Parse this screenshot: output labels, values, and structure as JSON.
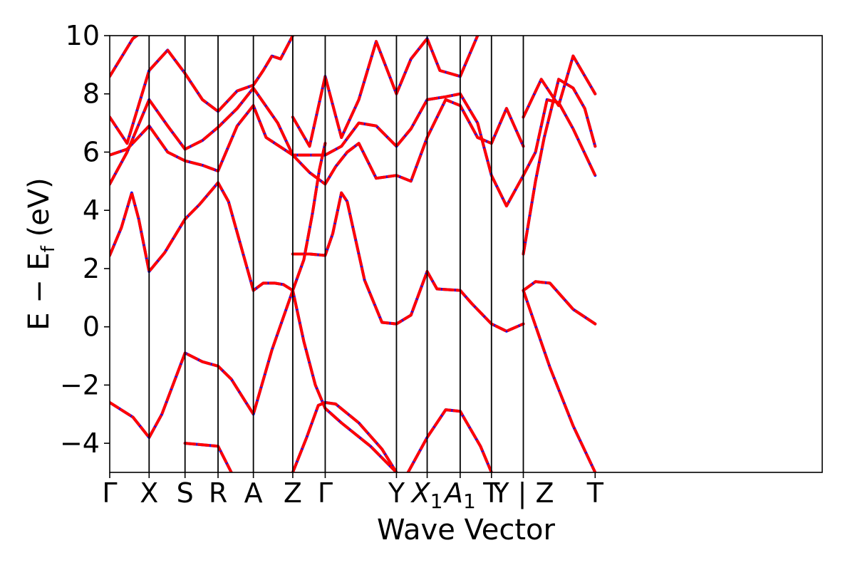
{
  "chart_data": {
    "type": "line",
    "title": "",
    "xlabel": "Wave Vector",
    "ylabel": "E − E_f (eV)",
    "ylabel_main": "E − E",
    "ylabel_sub": "f",
    "ylabel_unit": " (eV)",
    "ylim": [
      -5,
      10
    ],
    "yticks": [
      -4,
      -2,
      0,
      2,
      4,
      6,
      8,
      10
    ],
    "ytick_labels": [
      "−4",
      "−2",
      "0",
      "2",
      "4",
      "6",
      "8",
      "10"
    ],
    "xlim": [
      0,
      12.3
    ],
    "high_symmetry_points": [
      {
        "label": "Γ",
        "x": 0.0
      },
      {
        "label": "X",
        "x": 0.68
      },
      {
        "label": "S",
        "x": 1.3
      },
      {
        "label": "R",
        "x": 1.87
      },
      {
        "label": "A",
        "x": 2.48
      },
      {
        "label": "Z",
        "x": 3.16
      },
      {
        "label": "Γ",
        "x": 3.72
      },
      {
        "label": "Y",
        "x": 4.95
      },
      {
        "label": "X1",
        "x": 5.48
      },
      {
        "label": "A1",
        "x": 6.05
      },
      {
        "label": "T",
        "x": 6.59
      },
      {
        "label": "Y | Z",
        "x": 7.14
      },
      {
        "label": "T",
        "x": 8.38
      }
    ],
    "grid": false,
    "series": [
      {
        "name": "",
        "color": "#0000ff",
        "style": "solid",
        "bands": [
          [
            [
              0,
              2.45
            ],
            [
              0.2,
              3.4
            ],
            [
              0.38,
              4.6
            ],
            [
              0.5,
              3.7
            ],
            [
              0.68,
              1.9
            ],
            [
              0.95,
              2.55
            ],
            [
              1.3,
              3.7
            ],
            [
              1.55,
              4.2
            ],
            [
              1.87,
              4.95
            ],
            [
              2.05,
              4.3
            ],
            [
              2.48,
              1.25
            ],
            [
              2.65,
              1.5
            ],
            [
              2.85,
              1.5
            ],
            [
              3.0,
              1.45
            ],
            [
              3.16,
              1.25
            ]
          ],
          [
            [
              3.16,
              1.25
            ],
            [
              3.35,
              2.3
            ],
            [
              3.5,
              3.9
            ],
            [
              3.62,
              5.4
            ],
            [
              3.72,
              6.3
            ]
          ],
          [
            [
              3.16,
              2.5
            ],
            [
              3.45,
              2.5
            ],
            [
              3.72,
              2.45
            ],
            [
              3.85,
              3.2
            ],
            [
              4.0,
              4.6
            ],
            [
              4.1,
              4.3
            ],
            [
              4.4,
              1.6
            ],
            [
              4.7,
              0.15
            ],
            [
              4.95,
              0.1
            ],
            [
              5.2,
              0.4
            ],
            [
              5.48,
              1.9
            ],
            [
              5.65,
              1.3
            ],
            [
              6.05,
              1.25
            ],
            [
              6.25,
              0.8
            ],
            [
              6.59,
              0.1
            ],
            [
              6.85,
              -0.15
            ],
            [
              7.14,
              0.1
            ]
          ],
          [
            [
              7.14,
              1.25
            ],
            [
              7.35,
              1.55
            ],
            [
              7.6,
              1.5
            ],
            [
              8.0,
              0.6
            ],
            [
              8.38,
              0.1
            ]
          ],
          [
            [
              0,
              -2.6
            ],
            [
              0.4,
              -3.1
            ],
            [
              0.68,
              -3.8
            ],
            [
              0.9,
              -3.0
            ],
            [
              1.3,
              -0.9
            ],
            [
              1.6,
              -1.2
            ],
            [
              1.87,
              -1.35
            ],
            [
              2.1,
              -1.8
            ],
            [
              2.48,
              -3.0
            ],
            [
              2.8,
              -0.8
            ],
            [
              3.16,
              1.25
            ],
            [
              3.35,
              -0.5
            ],
            [
              3.55,
              -2.0
            ],
            [
              3.72,
              -2.8
            ],
            [
              4.0,
              -3.3
            ],
            [
              4.5,
              -4.1
            ],
            [
              4.95,
              -5.0
            ]
          ],
          [
            [
              3.16,
              -5.0
            ],
            [
              3.4,
              -3.8
            ],
            [
              3.6,
              -2.7
            ],
            [
              3.72,
              -2.6
            ],
            [
              3.9,
              -2.65
            ],
            [
              4.3,
              -3.3
            ],
            [
              4.7,
              -4.2
            ],
            [
              4.95,
              -5.0
            ]
          ],
          [
            [
              5.15,
              -5.0
            ],
            [
              5.48,
              -3.8
            ],
            [
              5.8,
              -2.85
            ],
            [
              6.05,
              -2.9
            ],
            [
              6.4,
              -4.1
            ],
            [
              6.59,
              -5.0
            ]
          ],
          [
            [
              7.14,
              1.25
            ],
            [
              7.6,
              -1.4
            ],
            [
              8.0,
              -3.4
            ],
            [
              8.38,
              -5.0
            ]
          ],
          [
            [
              1.3,
              -4.0
            ],
            [
              1.87,
              -4.1
            ],
            [
              2.1,
              -5.0
            ]
          ],
          [
            [
              0,
              4.9
            ],
            [
              0.3,
              6.0
            ],
            [
              0.68,
              7.8
            ],
            [
              1.0,
              6.9
            ],
            [
              1.3,
              6.1
            ],
            [
              1.6,
              6.4
            ],
            [
              1.87,
              6.85
            ],
            [
              2.2,
              7.5
            ],
            [
              2.48,
              8.2
            ],
            [
              2.9,
              7.0
            ],
            [
              3.16,
              5.9
            ],
            [
              3.45,
              5.3
            ],
            [
              3.72,
              4.9
            ],
            [
              3.9,
              5.5
            ],
            [
              4.1,
              6.0
            ],
            [
              4.3,
              6.3
            ],
            [
              4.6,
              5.1
            ],
            [
              4.95,
              5.2
            ],
            [
              5.2,
              5.0
            ],
            [
              5.48,
              6.5
            ],
            [
              5.8,
              7.8
            ],
            [
              6.05,
              7.6
            ],
            [
              6.35,
              6.5
            ],
            [
              6.59,
              6.3
            ],
            [
              6.85,
              7.5
            ],
            [
              7.14,
              6.2
            ]
          ],
          [
            [
              0,
              5.9
            ],
            [
              0.3,
              6.1
            ],
            [
              0.68,
              6.9
            ],
            [
              1.0,
              6.0
            ],
            [
              1.3,
              5.7
            ],
            [
              1.6,
              5.55
            ],
            [
              1.87,
              5.35
            ],
            [
              2.2,
              6.9
            ],
            [
              2.48,
              7.6
            ],
            [
              2.7,
              6.5
            ],
            [
              3.16,
              5.9
            ],
            [
              3.72,
              5.9
            ],
            [
              4.0,
              6.2
            ],
            [
              4.3,
              7.0
            ],
            [
              4.6,
              6.9
            ],
            [
              4.95,
              6.2
            ],
            [
              5.2,
              6.8
            ],
            [
              5.48,
              7.8
            ],
            [
              5.8,
              7.9
            ],
            [
              6.05,
              8.0
            ],
            [
              6.35,
              7.0
            ],
            [
              6.59,
              5.2
            ],
            [
              6.85,
              4.15
            ],
            [
              7.14,
              5.2
            ]
          ],
          [
            [
              0,
              7.2
            ],
            [
              0.3,
              6.3
            ],
            [
              0.68,
              8.8
            ],
            [
              1.0,
              9.5
            ],
            [
              1.3,
              8.7
            ],
            [
              1.6,
              7.8
            ],
            [
              1.87,
              7.4
            ],
            [
              2.2,
              8.1
            ],
            [
              2.48,
              8.3
            ],
            [
              2.65,
              8.8
            ],
            [
              2.8,
              9.3
            ],
            [
              2.95,
              9.2
            ],
            [
              3.16,
              10.0
            ]
          ],
          [
            [
              3.16,
              7.2
            ],
            [
              3.45,
              6.2
            ],
            [
              3.72,
              8.6
            ],
            [
              4.0,
              6.5
            ],
            [
              4.3,
              7.8
            ],
            [
              4.6,
              9.8
            ],
            [
              4.95,
              8.0
            ],
            [
              5.2,
              9.2
            ],
            [
              5.48,
              9.9
            ],
            [
              5.7,
              8.8
            ],
            [
              6.05,
              8.6
            ],
            [
              6.35,
              10.0
            ]
          ],
          [
            [
              7.14,
              2.5
            ],
            [
              7.35,
              5.0
            ],
            [
              7.5,
              6.5
            ],
            [
              7.75,
              8.5
            ],
            [
              8.0,
              8.2
            ],
            [
              8.2,
              7.5
            ],
            [
              8.38,
              6.2
            ]
          ],
          [
            [
              7.14,
              7.2
            ],
            [
              7.45,
              8.5
            ],
            [
              7.75,
              7.6
            ],
            [
              8.0,
              9.3
            ],
            [
              8.38,
              8.0
            ]
          ],
          [
            [
              0,
              8.6
            ],
            [
              0.4,
              9.9
            ],
            [
              0.68,
              10.3
            ]
          ],
          [
            [
              7.14,
              5.2
            ],
            [
              7.35,
              6.0
            ],
            [
              7.55,
              7.8
            ],
            [
              7.75,
              7.7
            ],
            [
              8.0,
              6.8
            ],
            [
              8.38,
              5.2
            ]
          ]
        ]
      },
      {
        "name": "",
        "color": "#ff0000",
        "style": "dashed",
        "same_as": 0
      }
    ]
  }
}
